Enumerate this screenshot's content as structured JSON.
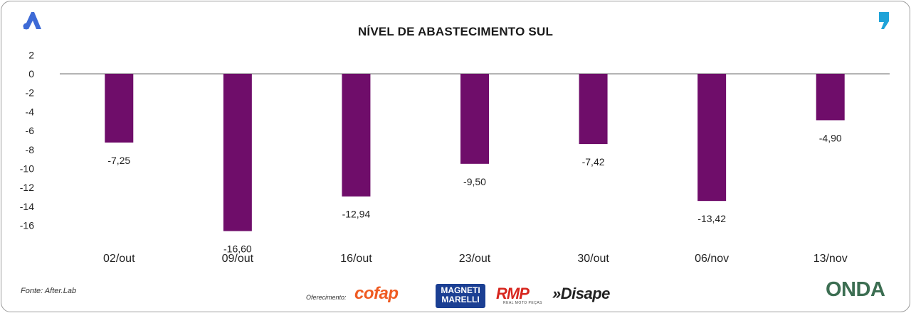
{
  "title": "NÍVEL DE ABASTECIMENTO SUL",
  "source": "Fonte: After.Lab",
  "offer_label": "Oferecimento:",
  "sponsors": {
    "cofap": "cofap",
    "magneti": "MAGNETI MARELLI",
    "rmp": "RMP",
    "rmp_sub": "REAL MOTO PEÇAS",
    "disape": "»Disape"
  },
  "brand_right": "ONDA",
  "colors": {
    "bar": "#6f0d6a",
    "zero_line": "#9b9b9b",
    "logo_blue": "#3d6ad6"
  },
  "icons": {
    "top_left": "a-logo-icon",
    "top_right": "comma-logo-icon"
  },
  "chart_data": {
    "type": "bar",
    "categories": [
      "02/out",
      "09/out",
      "16/out",
      "23/out",
      "30/out",
      "06/nov",
      "13/nov"
    ],
    "values": [
      -7.25,
      -16.6,
      -12.94,
      -9.5,
      -7.42,
      -13.42,
      -4.9
    ],
    "value_labels": [
      "-7,25",
      "-16,60",
      "-12,94",
      "-9,50",
      "-7,42",
      "-13,42",
      "-4,90"
    ],
    "yticks": [
      2,
      0,
      -2,
      -4,
      -6,
      -8,
      -10,
      -12,
      -14,
      -16
    ],
    "ylim": [
      -16.6,
      2
    ],
    "grid": false,
    "legend": "none"
  }
}
